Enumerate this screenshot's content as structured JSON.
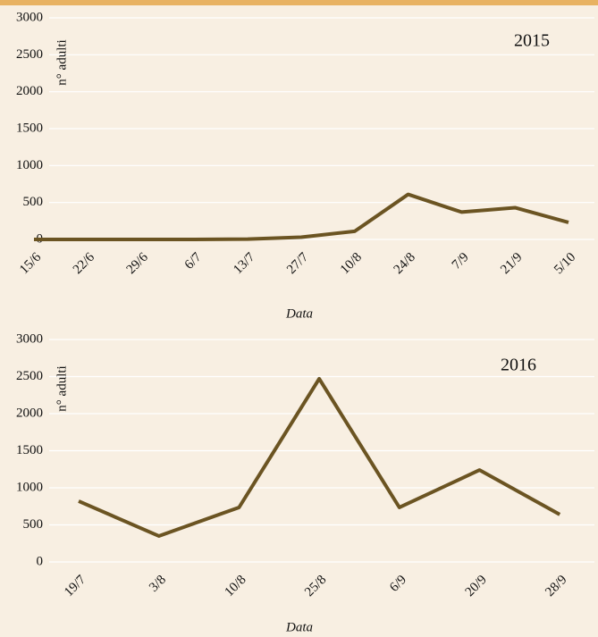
{
  "chart_data": [
    {
      "type": "line",
      "annotation": "2015",
      "ylabel": "n° adulti",
      "xlabel": "Data",
      "categories": [
        "15/6",
        "22/6",
        "29/6",
        "6/7",
        "13/7",
        "27/7",
        "10/8",
        "24/8",
        "7/9",
        "21/9",
        "5/10"
      ],
      "values": [
        0,
        0,
        0,
        0,
        5,
        30,
        110,
        610,
        370,
        430,
        230
      ],
      "color": "#6b5422",
      "ylim": [
        0,
        3000
      ],
      "yticks": [
        0,
        500,
        1000,
        1500,
        2000,
        2500,
        3000
      ],
      "grid": true
    },
    {
      "type": "line",
      "annotation": "2016",
      "ylabel": "n° adulti",
      "xlabel": "Data",
      "categories": [
        "19/7",
        "3/8",
        "10/8",
        "25/8",
        "6/9",
        "20/9",
        "28/9"
      ],
      "values": [
        820,
        350,
        735,
        2470,
        735,
        1240,
        640
      ],
      "color": "#6b5422",
      "ylim": [
        0,
        3000
      ],
      "yticks": [
        0,
        500,
        1000,
        1500,
        2000,
        2500,
        3000
      ],
      "grid": true
    }
  ]
}
